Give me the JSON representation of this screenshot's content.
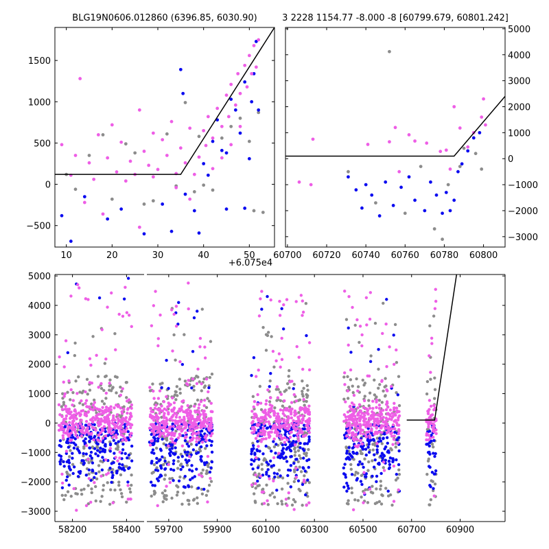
{
  "figure": {
    "left_title": "BLG19N0606.012860 (6396.85, 6030.90)",
    "right_title": "3 2228 1154.77 -8.000 -8 [60799.679, 60801.242]",
    "offset_label": "+6.075e4"
  },
  "colors": {
    "pink": "#ee5ee6",
    "blue": "#0b0bf0",
    "gray": "#8c8c8c",
    "model_line": "#000000"
  },
  "chart_data": [
    {
      "name": "top-left",
      "type": "scatter",
      "xlim": [
        7.5,
        55.5
      ],
      "ylim": [
        -760,
        1900
      ],
      "xticks": [
        10,
        20,
        30,
        40,
        50
      ],
      "xtick_labels": [
        "10",
        "20",
        "30",
        "40",
        "50"
      ],
      "xtick_offset": "+6.075e4",
      "yticks": [
        -500,
        0,
        500,
        1000,
        1500
      ],
      "ytick_labels": [
        "−500",
        "0",
        "500",
        "1000",
        "1500"
      ],
      "series": [
        {
          "color": "pink",
          "values": [
            [
              9,
              480
            ],
            [
              12,
              350
            ],
            [
              13,
              1280
            ],
            [
              15,
              260
            ],
            [
              17,
              600
            ],
            [
              19,
              320
            ],
            [
              20,
              720
            ],
            [
              21,
              150
            ],
            [
              22,
              510
            ],
            [
              24,
              280
            ],
            [
              25,
              120
            ],
            [
              26,
              900
            ],
            [
              27,
              400
            ],
            [
              28,
              230
            ],
            [
              29,
              620
            ],
            [
              30,
              180
            ],
            [
              31,
              540
            ],
            [
              32,
              350
            ],
            [
              33,
              760
            ],
            [
              34,
              130
            ],
            [
              35,
              440
            ],
            [
              36,
              260
            ],
            [
              37,
              680
            ],
            [
              38,
              120
            ],
            [
              39,
              330
            ],
            [
              40,
              650
            ],
            [
              40.5,
              470
            ],
            [
              41,
              820
            ],
            [
              42,
              560
            ],
            [
              43,
              920
            ],
            [
              44,
              700
            ],
            [
              45,
              1080
            ],
            [
              45.5,
              820
            ],
            [
              46,
              1210
            ],
            [
              47,
              960
            ],
            [
              47.5,
              1340
            ],
            [
              48,
              1100
            ],
            [
              49,
              1440
            ],
            [
              49.5,
              1180
            ],
            [
              50,
              1560
            ],
            [
              50.5,
              1340
            ],
            [
              51,
              1680
            ],
            [
              51.5,
              1420
            ],
            [
              52,
              1750
            ],
            [
              11,
              110
            ],
            [
              16,
              60
            ],
            [
              23,
              40
            ],
            [
              29,
              90
            ],
            [
              34,
              -40
            ],
            [
              37,
              -180
            ],
            [
              26,
              -520
            ],
            [
              18,
              -360
            ],
            [
              14,
              -220
            ],
            [
              42,
              190
            ],
            [
              44,
              320
            ],
            [
              46,
              480
            ],
            [
              48,
              700
            ]
          ]
        },
        {
          "color": "blue",
          "values": [
            [
              9,
              -380
            ],
            [
              11,
              -690
            ],
            [
              14,
              -150
            ],
            [
              19,
              -420
            ],
            [
              22,
              -300
            ],
            [
              27,
              -600
            ],
            [
              31,
              -240
            ],
            [
              33,
              -570
            ],
            [
              35,
              1390
            ],
            [
              35.5,
              1100
            ],
            [
              36,
              -120
            ],
            [
              38,
              -320
            ],
            [
              39,
              -590
            ],
            [
              40,
              250
            ],
            [
              41,
              110
            ],
            [
              42,
              520
            ],
            [
              43,
              780
            ],
            [
              44,
              410
            ],
            [
              45,
              380
            ],
            [
              46,
              1030
            ],
            [
              47,
              900
            ],
            [
              48,
              620
            ],
            [
              49,
              1240
            ],
            [
              50,
              310
            ],
            [
              50.5,
              1000
            ],
            [
              51,
              1340
            ],
            [
              51.5,
              1730
            ],
            [
              52,
              900
            ],
            [
              45,
              -300
            ],
            [
              49,
              -290
            ]
          ]
        },
        {
          "color": "gray",
          "values": [
            [
              10,
              120
            ],
            [
              12,
              -60
            ],
            [
              15,
              350
            ],
            [
              18,
              600
            ],
            [
              20,
              -180
            ],
            [
              23,
              490
            ],
            [
              25,
              380
            ],
            [
              27,
              -240
            ],
            [
              29,
              -200
            ],
            [
              32,
              610
            ],
            [
              34,
              -20
            ],
            [
              36,
              990
            ],
            [
              38,
              -90
            ],
            [
              40,
              -10
            ],
            [
              42,
              -70
            ],
            [
              44,
              560
            ],
            [
              46,
              700
            ],
            [
              48,
              800
            ],
            [
              50,
              520
            ],
            [
              52,
              870
            ],
            [
              53,
              -340
            ],
            [
              51,
              -320
            ],
            [
              39,
              580
            ]
          ]
        }
      ],
      "model_line": [
        [
          7.5,
          120
        ],
        [
          35,
          120
        ],
        [
          55.5,
          1900
        ]
      ]
    },
    {
      "name": "top-right",
      "type": "scatter",
      "xlim": [
        60699,
        60811
      ],
      "ylim": [
        -3400,
        5050
      ],
      "xticks": [
        60700,
        60720,
        60740,
        60760,
        60780,
        60800
      ],
      "xtick_labels": [
        "60700",
        "60720",
        "60740",
        "60760",
        "60780",
        "60800"
      ],
      "yticks": [
        -3000,
        -2000,
        -1000,
        0,
        1000,
        2000,
        3000,
        4000,
        5000
      ],
      "ytick_labels": [
        "−3000",
        "−2000",
        "−1000",
        "0",
        "1000",
        "2000",
        "3000",
        "4000",
        "5000"
      ],
      "series": [
        {
          "color": "pink",
          "values": [
            [
              60706,
              -900
            ],
            [
              60712,
              -1000
            ],
            [
              60713,
              750
            ],
            [
              60741,
              550
            ],
            [
              60752,
              650
            ],
            [
              60755,
              1200
            ],
            [
              60757,
              -500
            ],
            [
              60762,
              920
            ],
            [
              60765,
              680
            ],
            [
              60771,
              600
            ],
            [
              60778,
              280
            ],
            [
              60781,
              330
            ],
            [
              60783,
              -400
            ],
            [
              60785,
              2000
            ],
            [
              60788,
              1180
            ],
            [
              60792,
              450
            ],
            [
              60795,
              1000
            ],
            [
              60799,
              1600
            ],
            [
              60800,
              2300
            ],
            [
              60801,
              1300
            ]
          ]
        },
        {
          "color": "blue",
          "values": [
            [
              60731,
              -700
            ],
            [
              60735,
              -1200
            ],
            [
              60738,
              -1900
            ],
            [
              60740,
              -1000
            ],
            [
              60743,
              -1400
            ],
            [
              60747,
              -2200
            ],
            [
              60750,
              -900
            ],
            [
              60754,
              -1800
            ],
            [
              60758,
              -1100
            ],
            [
              60762,
              -700
            ],
            [
              60765,
              -1600
            ],
            [
              60770,
              -2000
            ],
            [
              60773,
              -900
            ],
            [
              60776,
              -1400
            ],
            [
              60779,
              -2100
            ],
            [
              60781,
              -1300
            ],
            [
              60783,
              -2000
            ],
            [
              60785,
              -1600
            ],
            [
              60787,
              -500
            ],
            [
              60789,
              -200
            ],
            [
              60792,
              300
            ],
            [
              60795,
              800
            ],
            [
              60798,
              1000
            ]
          ]
        },
        {
          "color": "gray",
          "values": [
            [
              60731,
              -500
            ],
            [
              60745,
              -1700
            ],
            [
              60752,
              4120
            ],
            [
              60760,
              -2100
            ],
            [
              60768,
              -300
            ],
            [
              60775,
              -2700
            ],
            [
              60779,
              -3100
            ],
            [
              60782,
              -1000
            ],
            [
              60788,
              -300
            ],
            [
              60790,
              400
            ],
            [
              60796,
              200
            ],
            [
              60799,
              -400
            ]
          ]
        }
      ],
      "model_line": [
        [
          60699,
          100
        ],
        [
          60785,
          100
        ],
        [
          60811,
          2400
        ]
      ]
    },
    {
      "name": "bottom",
      "type": "scatter",
      "ylim": [
        -3350,
        5050
      ],
      "yticks": [
        -3000,
        -2000,
        -1000,
        0,
        1000,
        2000,
        3000,
        4000,
        5000
      ],
      "ytick_labels": [
        "−3000",
        "−2000",
        "−1000",
        "0",
        "1000",
        "2000",
        "3000",
        "4000",
        "5000"
      ],
      "segments": [
        {
          "xlim": [
            58135,
            58465
          ],
          "xticks": [
            58200,
            58400
          ],
          "xtick_labels": [
            "58200",
            "58400"
          ],
          "data_range": [
            58150,
            58420
          ]
        },
        {
          "xlim": [
            59610,
            61085
          ],
          "xticks": [
            59700,
            59900,
            60100,
            60300,
            60500,
            60700,
            60900
          ],
          "xtick_labels": [
            "59700",
            "59900",
            "60100",
            "60300",
            "60500",
            "60700",
            "60900"
          ],
          "data_ranges": [
            [
              59620,
              59880
            ],
            [
              60040,
              60280
            ],
            [
              60420,
              60650
            ],
            [
              60760,
              60802
            ]
          ]
        }
      ],
      "series": [
        {
          "color": "pink",
          "core_range": [
            -400,
            400
          ],
          "outlier_max": 4850
        },
        {
          "color": "blue",
          "core_range": [
            -2500,
            300
          ],
          "outlier_max": 4950
        },
        {
          "color": "gray",
          "core_range": [
            -2800,
            1600
          ],
          "outlier_max": 4100
        }
      ],
      "model_line": [
        [
          60680,
          100
        ],
        [
          60795,
          100
        ],
        [
          61085,
          16000
        ]
      ]
    }
  ]
}
